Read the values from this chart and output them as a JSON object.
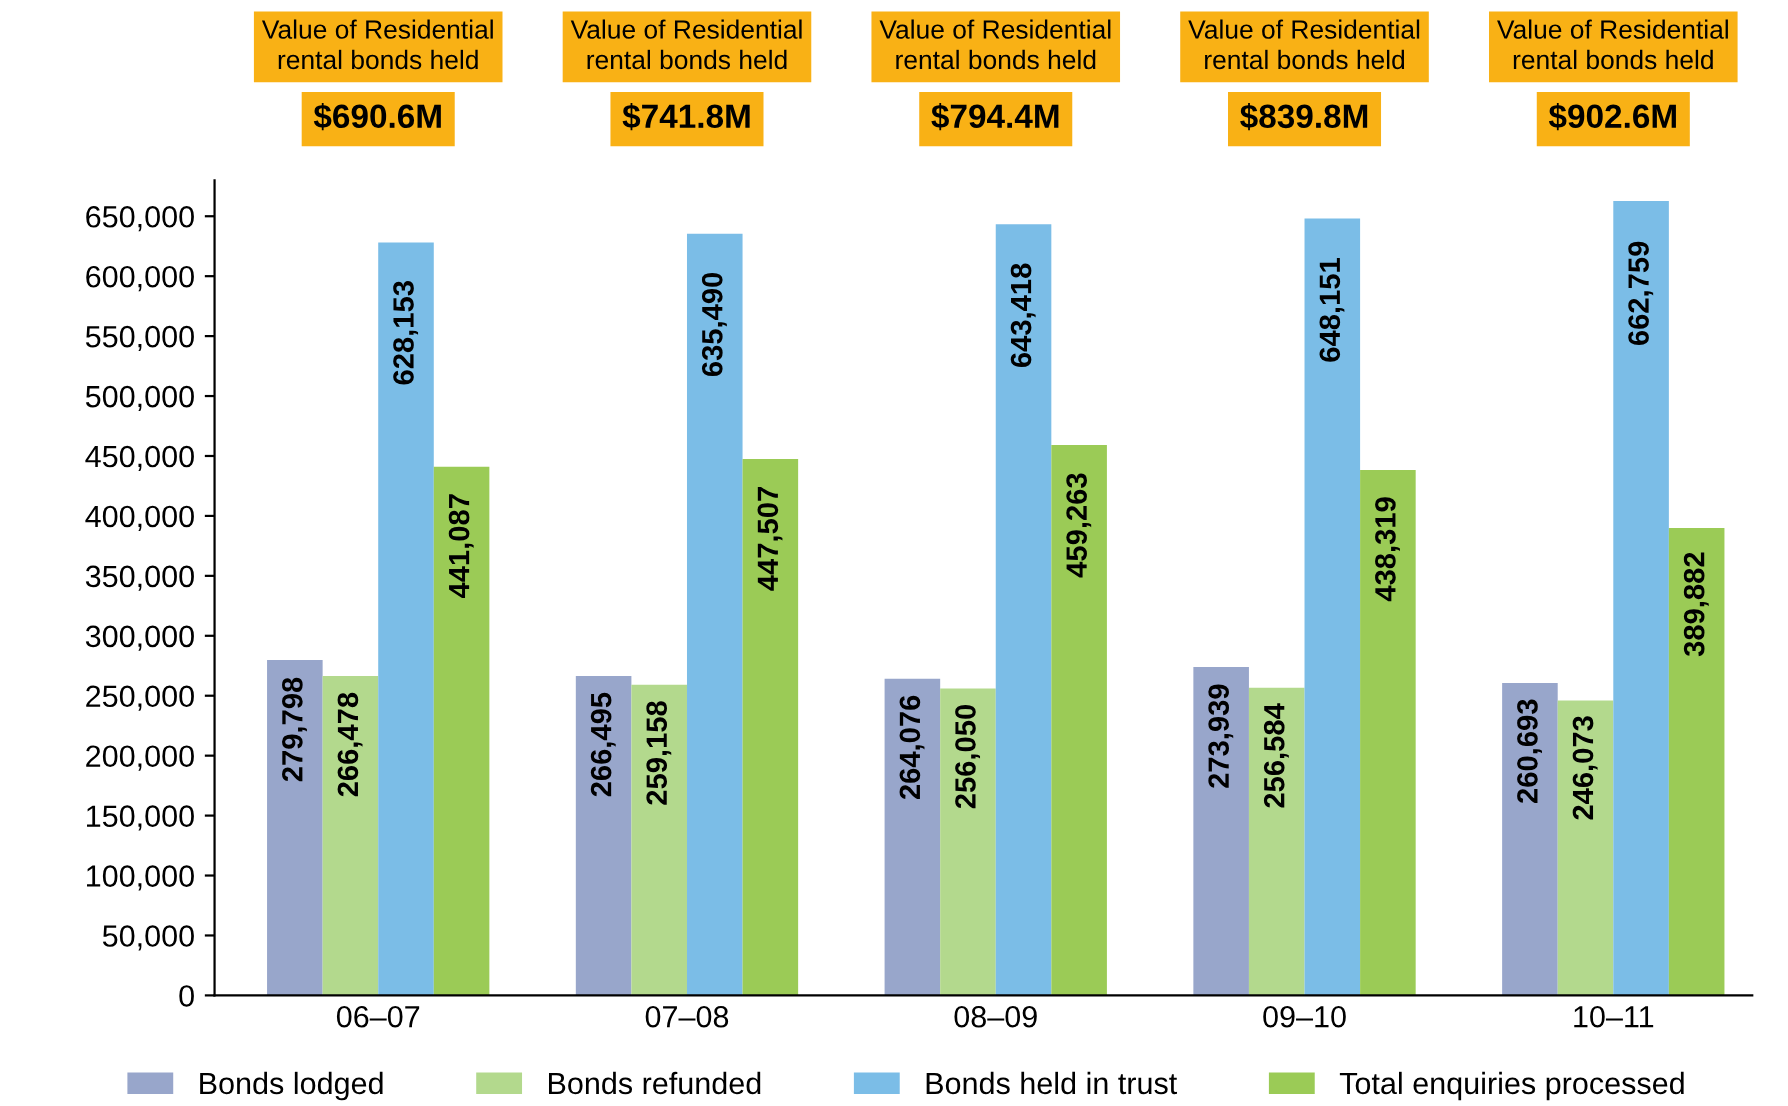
{
  "chart_data": {
    "type": "bar",
    "categories": [
      "06–07",
      "07–08",
      "08–09",
      "09–10",
      "10–11"
    ],
    "series": [
      {
        "name": "Bonds lodged",
        "color": "#98a6cb",
        "values": [
          279798,
          266495,
          264076,
          273939,
          260693
        ],
        "value_labels": [
          "279,798",
          "266,495",
          "264,076",
          "273,939",
          "260,693"
        ]
      },
      {
        "name": "Bonds refunded",
        "color": "#b3d98d",
        "values": [
          266478,
          259158,
          256050,
          256584,
          246073
        ],
        "value_labels": [
          "266,478",
          "259,158",
          "256,050",
          "256,584",
          "246,073"
        ]
      },
      {
        "name": "Bonds held in trust",
        "color": "#7bbde7",
        "values": [
          628153,
          635490,
          643418,
          648151,
          662759
        ],
        "value_labels": [
          "628,153",
          "635,490",
          "643,418",
          "648,151",
          "662,759"
        ]
      },
      {
        "name": "Total enquiries processed",
        "color": "#9bcb56",
        "values": [
          441087,
          447507,
          459263,
          438319,
          389882
        ],
        "value_labels": [
          "441,087",
          "447,507",
          "459,263",
          "438,319",
          "389,882"
        ]
      }
    ],
    "annotations": [
      "Value of Residential\nrental bonds held\n$690.6M",
      "Value of Residential\nrental bonds held\n$741.8M",
      "Value of Residential\nrental bonds held\n$794.4M",
      "Value of Residential\nrental bonds held\n$839.8M",
      "Value of Residential\nrental bonds held\n$902.6M"
    ],
    "ylim": [
      0,
      680000
    ],
    "yticks": [
      {
        "value": 0,
        "label": "0"
      },
      {
        "value": 50000,
        "label": "50,000"
      },
      {
        "value": 100000,
        "label": "100,000"
      },
      {
        "value": 150000,
        "label": "150,000"
      },
      {
        "value": 200000,
        "label": "200,000"
      },
      {
        "value": 250000,
        "label": "250,000"
      },
      {
        "value": 300000,
        "label": "300,000"
      },
      {
        "value": 350000,
        "label": "350,000"
      },
      {
        "value": 400000,
        "label": "400,000"
      },
      {
        "value": 450000,
        "label": "450,000"
      },
      {
        "value": 500000,
        "label": "500,000"
      },
      {
        "value": 550000,
        "label": "550,000"
      },
      {
        "value": 600000,
        "label": "600,000"
      },
      {
        "value": 650000,
        "label": "650,000"
      }
    ],
    "grid": false,
    "legend": "bottom"
  }
}
